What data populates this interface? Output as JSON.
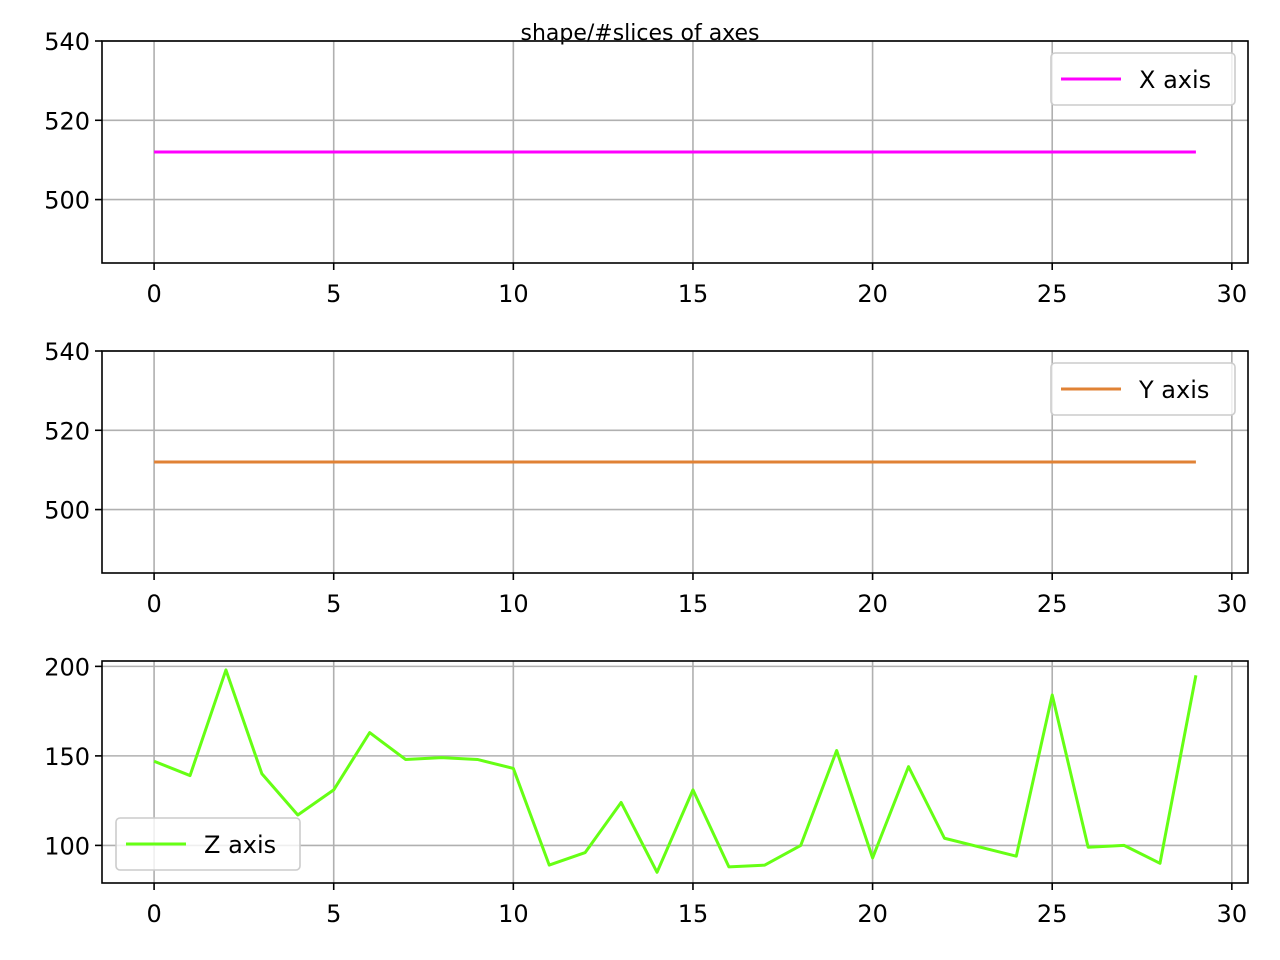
{
  "title": "shape/#slices of axes",
  "chart_data": [
    {
      "type": "line",
      "x": [
        0,
        1,
        2,
        3,
        4,
        5,
        6,
        7,
        8,
        9,
        10,
        11,
        12,
        13,
        14,
        15,
        16,
        17,
        18,
        19,
        20,
        21,
        22,
        23,
        24,
        25,
        26,
        27,
        28,
        29
      ],
      "series": [
        {
          "name": "X axis",
          "color": "#ff00ff",
          "values": [
            512,
            512,
            512,
            512,
            512,
            512,
            512,
            512,
            512,
            512,
            512,
            512,
            512,
            512,
            512,
            512,
            512,
            512,
            512,
            512,
            512,
            512,
            512,
            512,
            512,
            512,
            512,
            512,
            512,
            512
          ]
        }
      ],
      "xlim": [
        -1.45,
        30.45
      ],
      "ylim": [
        484,
        540
      ],
      "xticks": [
        0,
        5,
        10,
        15,
        20,
        25,
        30
      ],
      "yticks": [
        500,
        520,
        540
      ],
      "grid": true,
      "legend": "top-right"
    },
    {
      "type": "line",
      "x": [
        0,
        1,
        2,
        3,
        4,
        5,
        6,
        7,
        8,
        9,
        10,
        11,
        12,
        13,
        14,
        15,
        16,
        17,
        18,
        19,
        20,
        21,
        22,
        23,
        24,
        25,
        26,
        27,
        28,
        29
      ],
      "series": [
        {
          "name": "Y axis",
          "color": "#e08235",
          "values": [
            512,
            512,
            512,
            512,
            512,
            512,
            512,
            512,
            512,
            512,
            512,
            512,
            512,
            512,
            512,
            512,
            512,
            512,
            512,
            512,
            512,
            512,
            512,
            512,
            512,
            512,
            512,
            512,
            512,
            512
          ]
        }
      ],
      "xlim": [
        -1.45,
        30.45
      ],
      "ylim": [
        484,
        540
      ],
      "xticks": [
        0,
        5,
        10,
        15,
        20,
        25,
        30
      ],
      "yticks": [
        500,
        520,
        540
      ],
      "grid": true,
      "legend": "top-right"
    },
    {
      "type": "line",
      "x": [
        0,
        1,
        2,
        3,
        4,
        5,
        6,
        7,
        8,
        9,
        10,
        11,
        12,
        13,
        14,
        15,
        16,
        17,
        18,
        19,
        20,
        21,
        22,
        23,
        24,
        25,
        26,
        27,
        28,
        29
      ],
      "series": [
        {
          "name": "Z axis",
          "color": "#66ff14",
          "values": [
            147,
            139,
            198,
            140,
            117,
            131,
            163,
            148,
            149,
            148,
            143,
            89,
            96,
            124,
            85,
            131,
            88,
            89,
            100,
            153,
            93,
            144,
            104,
            99,
            94,
            184,
            99,
            100,
            90,
            195
          ]
        }
      ],
      "xlim": [
        -1.45,
        30.45
      ],
      "ylim": [
        79,
        203
      ],
      "xticks": [
        0,
        5,
        10,
        15,
        20,
        25,
        30
      ],
      "yticks": [
        100,
        150,
        200
      ],
      "grid": true,
      "legend": "bottom-left"
    }
  ]
}
